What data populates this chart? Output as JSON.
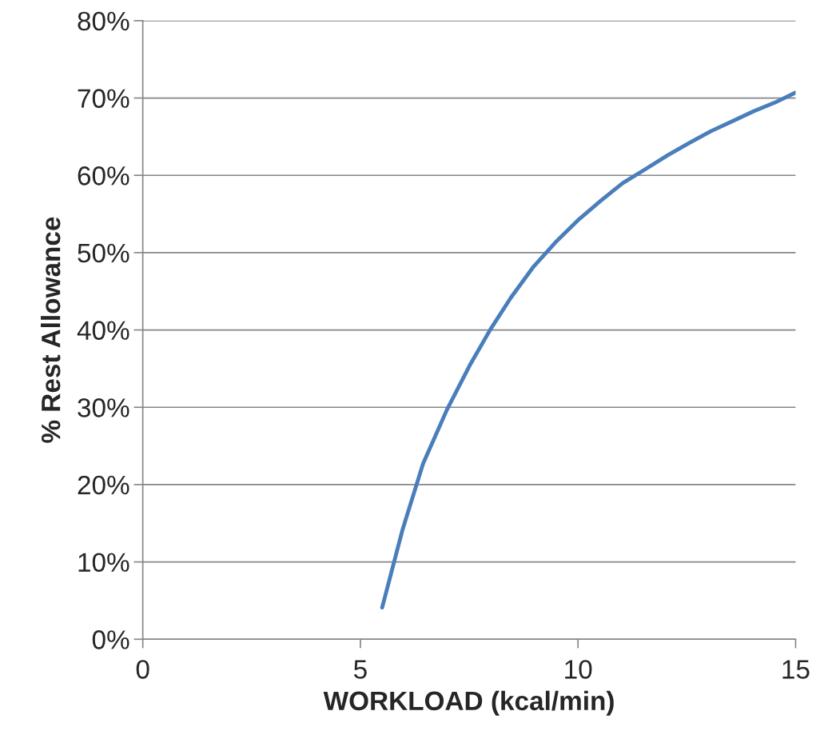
{
  "chart_data": {
    "type": "line",
    "xlabel": "WORKLOAD (kcal/min)",
    "ylabel": "% Rest Allowance",
    "series": [
      {
        "color": "#4a7ebb",
        "x": [
          5.5,
          5.97,
          6.44,
          6.99,
          7.51,
          7.99,
          8.46,
          8.98,
          9.51,
          10.02,
          10.52,
          11.03,
          11.55,
          12.06,
          12.56,
          13.05,
          13.55,
          14.04,
          14.52,
          15
        ],
        "values": [
          4.1,
          14.2,
          22.7,
          29.7,
          35.4,
          40.1,
          44.2,
          48.2,
          51.5,
          54.3,
          56.7,
          59.0,
          60.8,
          62.6,
          64.2,
          65.7,
          67.0,
          68.3,
          69.4,
          70.7
        ]
      }
    ],
    "xlim": [
      0,
      15
    ],
    "xticks": [
      0,
      5,
      10,
      15
    ],
    "ylim": [
      0,
      80
    ],
    "yticks": [
      {
        "value": 0,
        "label": "0%"
      },
      {
        "value": 10,
        "label": "10%"
      },
      {
        "value": 20,
        "label": "20%"
      },
      {
        "value": 30,
        "label": "30%"
      },
      {
        "value": 40,
        "label": "40%"
      },
      {
        "value": 50,
        "label": "50%"
      },
      {
        "value": 60,
        "label": "60%"
      },
      {
        "value": 70,
        "label": "70%"
      },
      {
        "value": 80,
        "label": "80%"
      }
    ],
    "grid": "y",
    "marker": "none",
    "line_style": "solid"
  }
}
